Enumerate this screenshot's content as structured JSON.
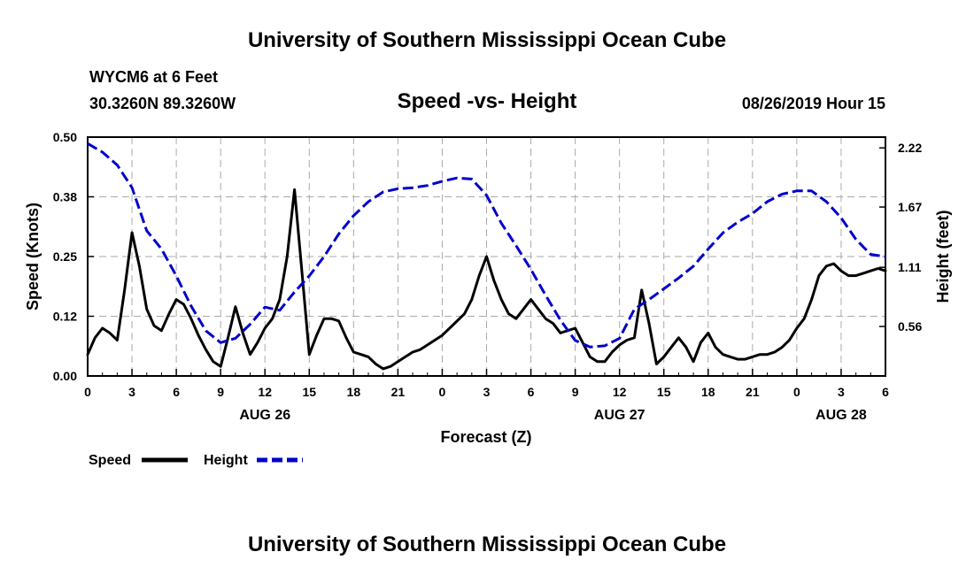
{
  "header": {
    "title": "University of Southern Mississippi Ocean Cube",
    "station": "WYCM6 at 6 Feet",
    "coords": "30.3260N 89.3260W",
    "subtitle": "Speed -vs- Height",
    "datetime": "08/26/2019 Hour 15"
  },
  "footer": {
    "title": "University of Southern Mississippi Ocean Cube"
  },
  "colors": {
    "speed": "#000000",
    "height": "#0000cc",
    "grid": "#aaaaaa"
  },
  "chart_data": {
    "type": "line",
    "title": "Speed -vs- Height",
    "xlabel": "Forecast (Z)",
    "ylabel": "Speed (Knots)",
    "y2label": "Height (feet)",
    "x_ticks": [
      "0",
      "3",
      "6",
      "9",
      "12",
      "15",
      "18",
      "21",
      "0",
      "3",
      "6",
      "9",
      "12",
      "15",
      "18",
      "21",
      "0",
      "3",
      "6"
    ],
    "date_labels": [
      {
        "label": "AUG 26",
        "hour": 12
      },
      {
        "label": "AUG 27",
        "hour": 36
      },
      {
        "label": "AUG 28",
        "hour": 51
      }
    ],
    "xlim": [
      0,
      54
    ],
    "ylim": [
      0,
      0.5
    ],
    "y_ticks": [
      "0.00",
      "0.12",
      "0.25",
      "0.38",
      "0.50"
    ],
    "y_tick_values": [
      0,
      0.125,
      0.25,
      0.375,
      0.5
    ],
    "y2lim": [
      0.1,
      2.32
    ],
    "y2_ticks": [
      "0.56",
      "1.11",
      "1.67",
      "2.22"
    ],
    "y2_tick_values": [
      0.56,
      1.11,
      1.67,
      2.22
    ],
    "legend": [
      {
        "label": "Speed",
        "style": "solid"
      },
      {
        "label": "Height",
        "style": "dashed"
      }
    ],
    "series": [
      {
        "name": "Speed",
        "axis": "left",
        "x": [
          0,
          0.5,
          1,
          1.5,
          2,
          2.5,
          3,
          3.5,
          4,
          4.5,
          5,
          5.5,
          6,
          6.5,
          7,
          7.5,
          8,
          8.5,
          9,
          9.5,
          10,
          10.5,
          11,
          11.5,
          12,
          12.5,
          13,
          13.5,
          14,
          14.5,
          15,
          15.5,
          16,
          16.5,
          17,
          17.5,
          18,
          18.5,
          19,
          19.5,
          20,
          20.5,
          21,
          21.5,
          22,
          22.5,
          23,
          23.5,
          24,
          24.5,
          25,
          25.5,
          26,
          26.5,
          27,
          27.5,
          28,
          28.5,
          29,
          29.5,
          30,
          30.5,
          31,
          31.5,
          32,
          32.5,
          33,
          33.5,
          34,
          34.5,
          35,
          35.5,
          36,
          36.5,
          37,
          37.5,
          38,
          38.5,
          39,
          39.5,
          40,
          40.5,
          41,
          41.5,
          42,
          42.5,
          43,
          43.5,
          44,
          44.5,
          45,
          45.5,
          46,
          46.5,
          47,
          47.5,
          48,
          48.5,
          49,
          49.5,
          50,
          50.5,
          51,
          51.5,
          52,
          52.5,
          53,
          53.5,
          54
        ],
        "values": [
          0.045,
          0.08,
          0.1,
          0.09,
          0.075,
          0.18,
          0.3,
          0.23,
          0.14,
          0.105,
          0.095,
          0.13,
          0.16,
          0.15,
          0.12,
          0.085,
          0.055,
          0.03,
          0.02,
          0.08,
          0.145,
          0.09,
          0.045,
          0.07,
          0.1,
          0.12,
          0.16,
          0.25,
          0.39,
          0.22,
          0.045,
          0.085,
          0.12,
          0.12,
          0.115,
          0.08,
          0.05,
          0.045,
          0.04,
          0.025,
          0.015,
          0.02,
          0.03,
          0.04,
          0.05,
          0.055,
          0.065,
          0.075,
          0.085,
          0.1,
          0.115,
          0.13,
          0.16,
          0.21,
          0.25,
          0.2,
          0.16,
          0.13,
          0.12,
          0.14,
          0.16,
          0.14,
          0.12,
          0.11,
          0.09,
          0.095,
          0.1,
          0.07,
          0.04,
          0.03,
          0.03,
          0.05,
          0.065,
          0.075,
          0.08,
          0.18,
          0.11,
          0.025,
          0.04,
          0.06,
          0.08,
          0.06,
          0.03,
          0.07,
          0.09,
          0.06,
          0.045,
          0.04,
          0.035,
          0.035,
          0.04,
          0.045,
          0.045,
          0.05,
          0.06,
          0.075,
          0.1,
          0.12,
          0.16,
          0.21,
          0.23,
          0.235,
          0.22,
          0.21,
          0.21,
          0.215,
          0.22,
          0.225,
          0.22
        ]
      },
      {
        "name": "Height",
        "axis": "right",
        "x": [
          0,
          1,
          2,
          3,
          4,
          5,
          6,
          7,
          8,
          9,
          10,
          11,
          12,
          13,
          14,
          15,
          16,
          17,
          18,
          19,
          20,
          21,
          22,
          23,
          24,
          25,
          26,
          27,
          28,
          29,
          30,
          31,
          32,
          33,
          34,
          35,
          36,
          37,
          38,
          39,
          40,
          41,
          42,
          43,
          44,
          45,
          46,
          47,
          48,
          49,
          50,
          51,
          52,
          53,
          54
        ],
        "values": [
          2.26,
          2.18,
          2.06,
          1.85,
          1.45,
          1.28,
          1.03,
          0.75,
          0.52,
          0.41,
          0.45,
          0.58,
          0.74,
          0.71,
          0.88,
          1.03,
          1.21,
          1.42,
          1.59,
          1.72,
          1.81,
          1.84,
          1.85,
          1.87,
          1.91,
          1.94,
          1.93,
          1.78,
          1.52,
          1.31,
          1.09,
          0.85,
          0.62,
          0.43,
          0.37,
          0.38,
          0.45,
          0.72,
          0.81,
          0.91,
          1.01,
          1.12,
          1.28,
          1.43,
          1.53,
          1.61,
          1.72,
          1.79,
          1.82,
          1.82,
          1.72,
          1.57,
          1.37,
          1.23,
          1.21
        ]
      }
    ]
  }
}
